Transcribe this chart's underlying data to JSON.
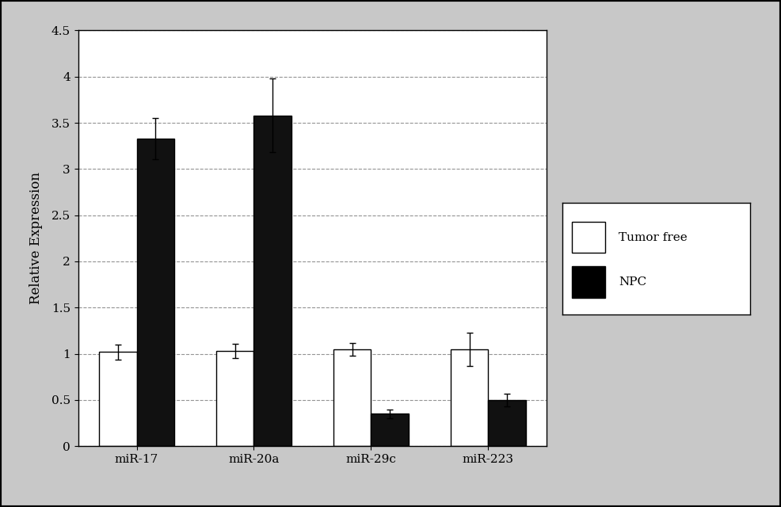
{
  "categories": [
    "miR-17",
    "miR-20a",
    "miR-29c",
    "miR-223"
  ],
  "tumor_free_values": [
    1.02,
    1.03,
    1.05,
    1.05
  ],
  "npc_values": [
    3.33,
    3.58,
    0.35,
    0.5
  ],
  "tumor_free_errors": [
    0.08,
    0.08,
    0.07,
    0.18
  ],
  "npc_errors": [
    0.22,
    0.4,
    0.05,
    0.07
  ],
  "tumor_free_color": "#ffffff",
  "tumor_free_edgecolor": "#000000",
  "npc_color": "#111111",
  "npc_edgecolor": "#000000",
  "ylabel": "Relative Expression",
  "ylim": [
    0,
    4.5
  ],
  "yticks": [
    0,
    0.5,
    1.0,
    1.5,
    2.0,
    2.5,
    3.0,
    3.5,
    4.0,
    4.5
  ],
  "legend_labels": [
    "Tumor free",
    "NPC"
  ],
  "bar_width": 0.32,
  "grid_color": "#888888",
  "background_color": "#c8c8c8",
  "plot_background": "#ffffff",
  "font_family": "serif",
  "tick_fontsize": 11,
  "label_fontsize": 12,
  "legend_fontsize": 11
}
